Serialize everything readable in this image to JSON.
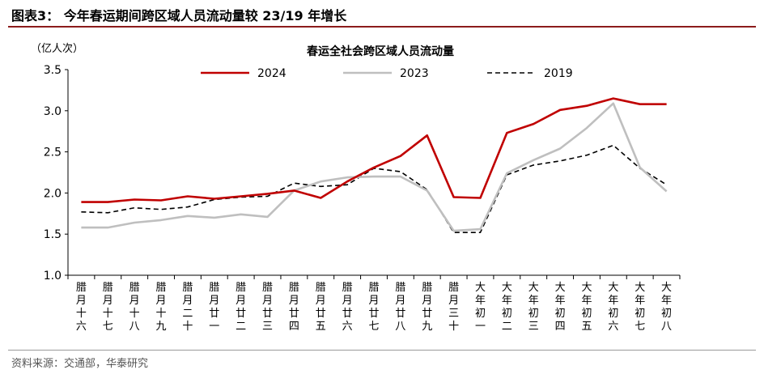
{
  "figure_title": "图表3：  今年春运期间跨区域人员流动量较 23/19 年增长",
  "source_note": "资料来源：交通部，华泰研究",
  "colors": {
    "accent": "#8c1c1c"
  },
  "chart_data": {
    "type": "line",
    "title": "春运全社会跨区域人员流动量",
    "unit_label": "（亿人次）",
    "xlabel": "",
    "ylabel": "",
    "ylim": [
      1.0,
      3.5
    ],
    "yticks": [
      "1.0",
      "1.5",
      "2.0",
      "2.5",
      "3.0",
      "3.5"
    ],
    "grid": false,
    "legend_position": "top",
    "categories": [
      "腊月十六",
      "腊月十七",
      "腊月十八",
      "腊月十九",
      "腊月二十",
      "腊月廿一",
      "腊月廿二",
      "腊月廿三",
      "腊月廿四",
      "腊月廿五",
      "腊月廿六",
      "腊月廿七",
      "腊月廿八",
      "腊月廿九",
      "腊月三十",
      "大年初一",
      "大年初二",
      "大年初三",
      "大年初四",
      "大年初五",
      "大年初六",
      "大年初七",
      "大年初八"
    ],
    "series": [
      {
        "name": "2024",
        "color": "#c00000",
        "style": "solid",
        "values": [
          1.89,
          1.89,
          1.92,
          1.91,
          1.96,
          1.93,
          1.96,
          1.99,
          2.03,
          1.94,
          2.14,
          2.31,
          2.45,
          2.7,
          1.95,
          1.94,
          2.73,
          2.84,
          3.01,
          3.06,
          3.15,
          3.08,
          3.08
        ]
      },
      {
        "name": "2023",
        "color": "#bfbfbf",
        "style": "solid",
        "values": [
          1.58,
          1.58,
          1.64,
          1.67,
          1.72,
          1.7,
          1.74,
          1.71,
          2.03,
          2.14,
          2.19,
          2.2,
          2.2,
          2.03,
          1.54,
          1.56,
          2.24,
          2.4,
          2.54,
          2.79,
          3.09,
          2.31,
          2.02
        ]
      },
      {
        "name": "2019",
        "color": "#000000",
        "style": "dashed",
        "values": [
          1.77,
          1.76,
          1.82,
          1.8,
          1.83,
          1.92,
          1.95,
          1.96,
          2.12,
          2.08,
          2.1,
          2.3,
          2.26,
          2.04,
          1.52,
          1.52,
          2.22,
          2.34,
          2.39,
          2.46,
          2.58,
          2.3,
          2.1
        ]
      }
    ]
  }
}
